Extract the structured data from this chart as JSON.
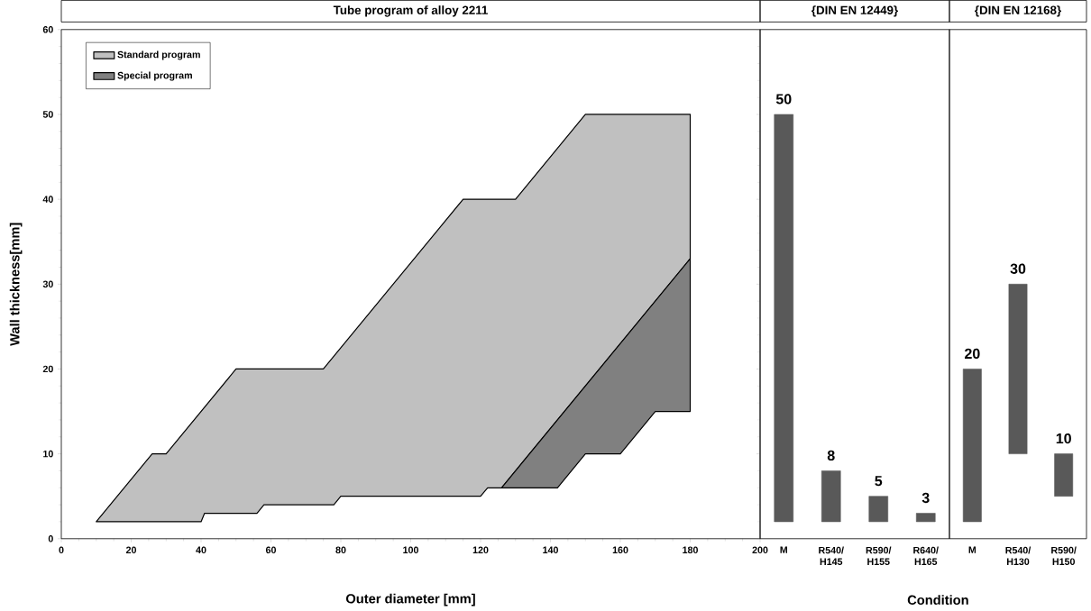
{
  "chart_data": [
    {
      "type": "area",
      "title": "Tube program of alloy 2211",
      "xlabel": "Outer diameter [mm]",
      "ylabel": "Wall thickness[mm]",
      "xlim": [
        0,
        200
      ],
      "xticks": [
        0,
        20,
        40,
        60,
        80,
        100,
        120,
        140,
        160,
        180,
        200
      ],
      "ylim": [
        0,
        60
      ],
      "yticks": [
        0,
        10,
        20,
        30,
        40,
        50,
        60
      ],
      "legend": "top left",
      "series": [
        {
          "name": "Standard program",
          "color": "#c0c0c0",
          "x": [
            10,
            26,
            30,
            50,
            75,
            115,
            130,
            150,
            180,
            180,
            126,
            122,
            120,
            80,
            78,
            58,
            56,
            41,
            40,
            10
          ],
          "values": [
            2,
            10,
            10,
            20,
            20,
            40,
            40,
            50,
            50,
            33,
            6,
            6,
            5,
            5,
            4,
            4,
            3,
            3,
            2,
            2
          ]
        },
        {
          "name": "Special program",
          "color": "#808080",
          "x": [
            126,
            180,
            180,
            170,
            160,
            150,
            142,
            126
          ],
          "values": [
            6,
            33,
            15,
            15,
            10,
            10,
            6,
            6
          ]
        }
      ]
    },
    {
      "type": "bar",
      "title": "{DIN EN 12449}",
      "xlabel": "Condition",
      "categories": [
        "M",
        "R540/H145",
        "R590/H155",
        "R640/H165"
      ],
      "base": [
        2,
        2,
        2,
        2
      ],
      "values": [
        48,
        6,
        3,
        1
      ],
      "value_labels": [
        "50",
        "8",
        "5",
        "3"
      ],
      "color": "#595959",
      "ylim": [
        0,
        60
      ],
      "yticks": [
        0,
        10,
        20,
        30,
        40,
        50,
        60
      ],
      "tick_labels": "x"
    },
    {
      "type": "bar",
      "title": "{DIN EN 12168}",
      "categories": [
        "M",
        "R540/H130",
        "R590/H150"
      ],
      "base": [
        2,
        10,
        5
      ],
      "values": [
        18,
        20,
        5
      ],
      "value_labels": [
        "20",
        "30",
        "10"
      ],
      "color": "#595959",
      "ylim": [
        0,
        60
      ],
      "tick_labels": "x"
    }
  ]
}
